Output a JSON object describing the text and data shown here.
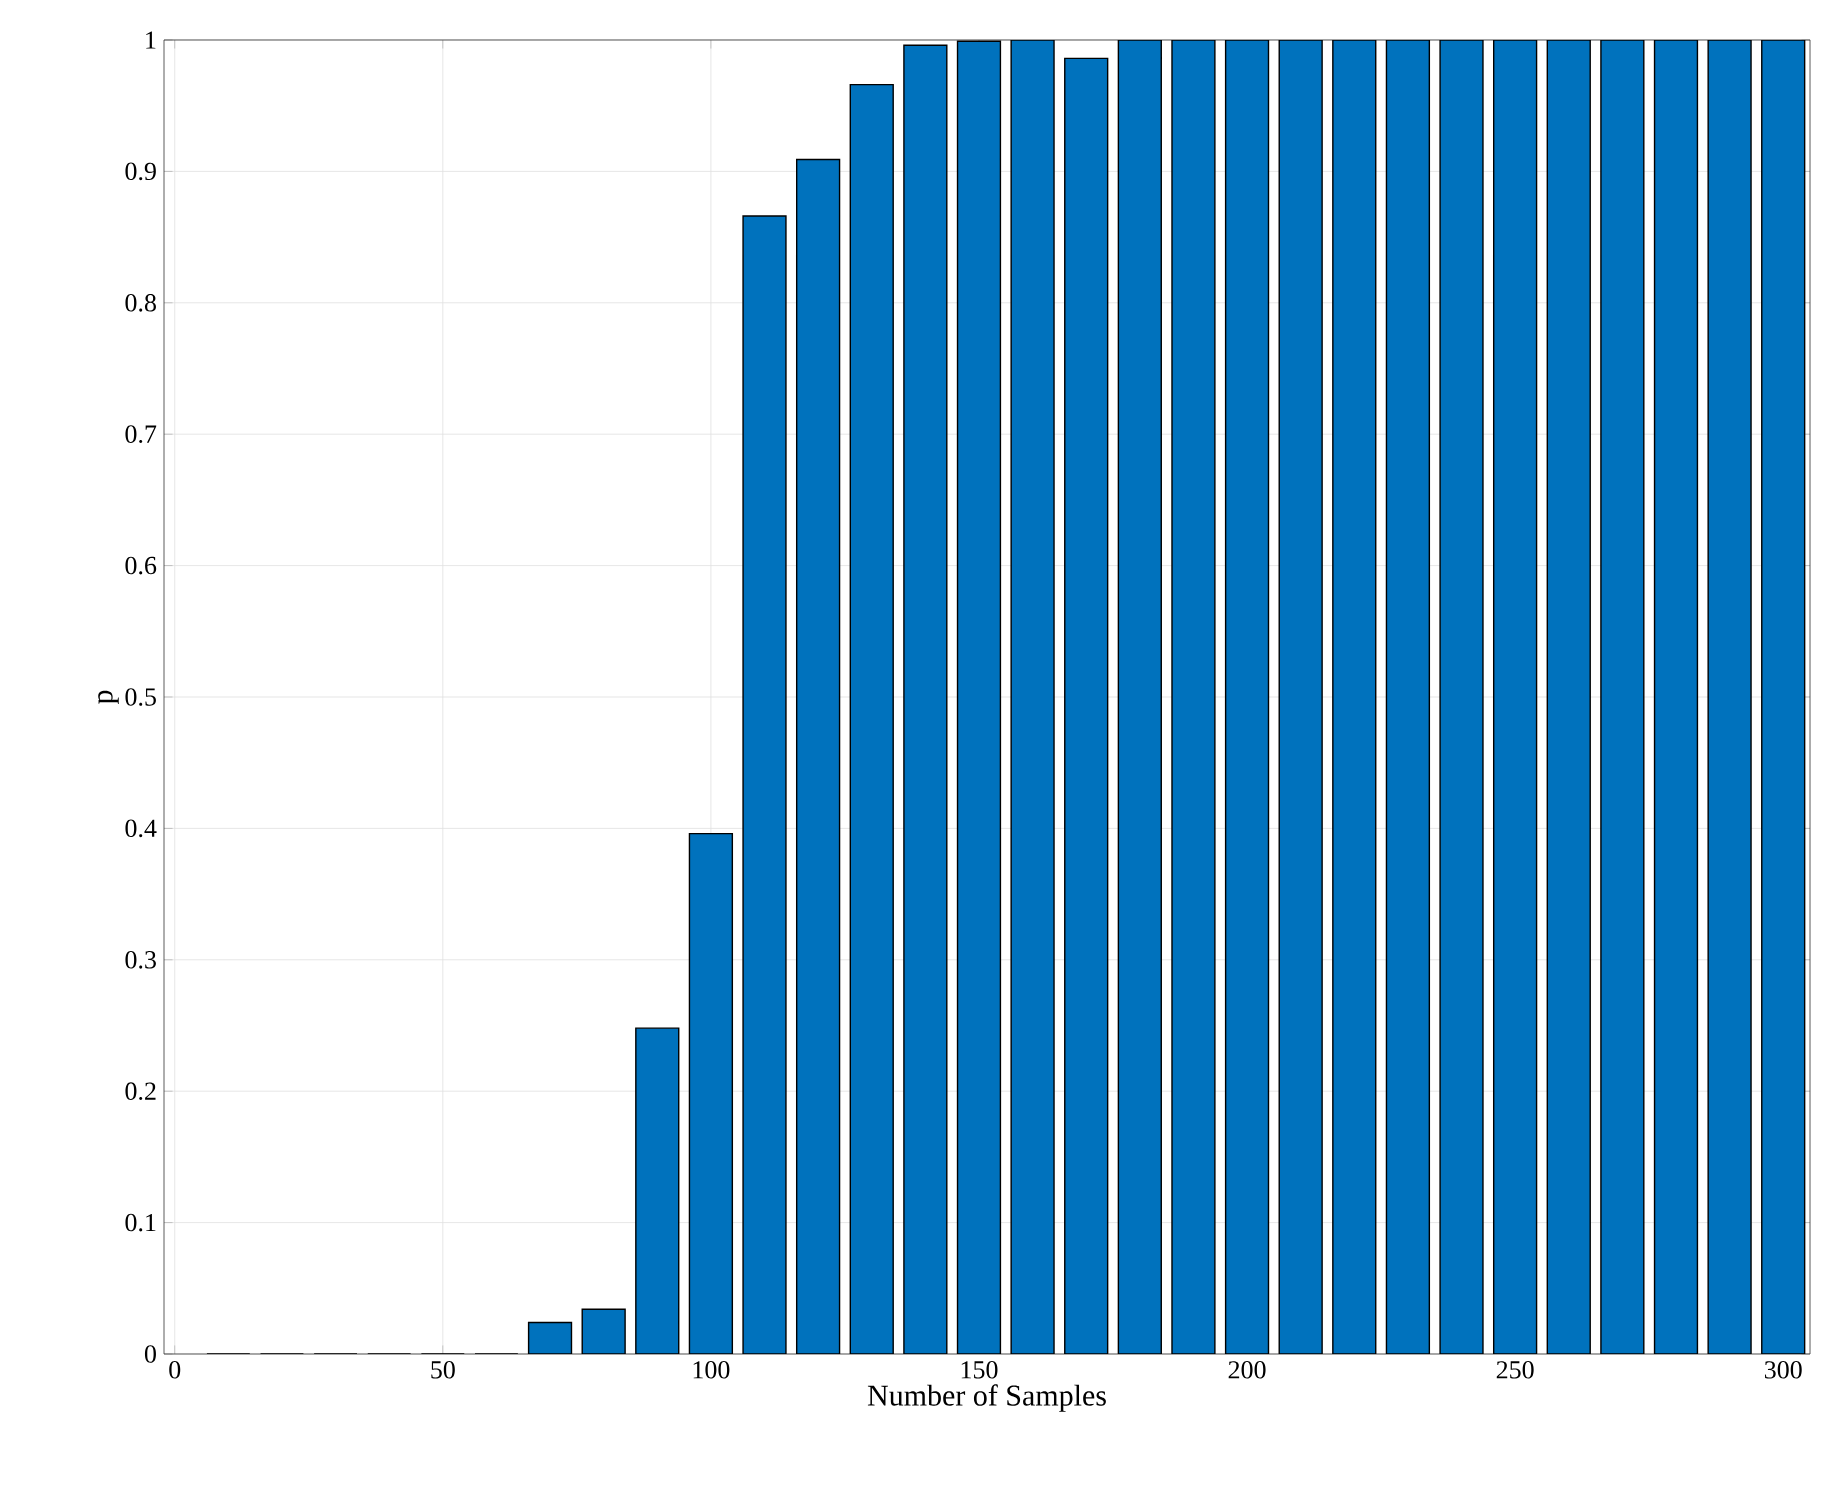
{
  "chart_data": {
    "type": "bar",
    "xlabel": "Number of Samples",
    "ylabel": "p",
    "x": [
      10,
      20,
      30,
      40,
      50,
      60,
      70,
      80,
      90,
      100,
      110,
      120,
      130,
      140,
      150,
      160,
      170,
      180,
      190,
      200,
      210,
      220,
      230,
      240,
      250,
      260,
      270,
      280,
      290,
      300
    ],
    "values": [
      0,
      0,
      0,
      0,
      0,
      0,
      0.024,
      0.034,
      0.248,
      0.396,
      0.866,
      0.909,
      0.966,
      0.996,
      0.999,
      1,
      0.986,
      1,
      1,
      1,
      1,
      1,
      1,
      1,
      1,
      1,
      1,
      1,
      1,
      1
    ],
    "color": "#0072bd",
    "xlim": [
      -2,
      305
    ],
    "ylim": [
      0,
      1
    ],
    "xticks": [
      0,
      50,
      100,
      150,
      200,
      250,
      300
    ],
    "yticks": [
      0,
      0.1,
      0.2,
      0.3,
      0.4,
      0.5,
      0.6,
      0.7,
      0.8,
      0.9,
      1
    ],
    "grid": true
  }
}
